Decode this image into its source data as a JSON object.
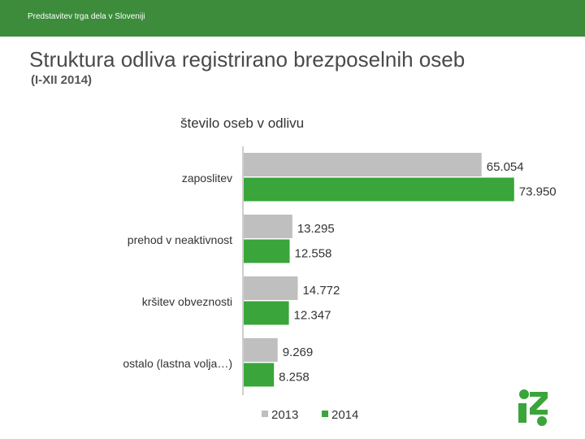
{
  "header": {
    "org": "Predstavitev trga dela v Sloveniji"
  },
  "slide": {
    "title": "Struktura odliva registrirano brezposelnih oseb",
    "subtitle": "(I-XII 2014)"
  },
  "chart_data": {
    "type": "bar",
    "orientation": "horizontal",
    "title": "število oseb v odlivu",
    "categories": [
      "zaposlitev",
      "prehod v neaktivnost",
      "kršitev obveznosti",
      "ostalo (lastna volja…)"
    ],
    "series": [
      {
        "name": "2013",
        "color": "#bfbfbf",
        "values": [
          65054,
          13295,
          14772,
          9269
        ],
        "labels": [
          "65.054",
          "13.295",
          "14.772",
          "9.269"
        ]
      },
      {
        "name": "2014",
        "color": "#3aa53a",
        "values": [
          73950,
          12558,
          12347,
          8258
        ],
        "labels": [
          "73.950",
          "12.558",
          "12.347",
          "8.258"
        ]
      }
    ],
    "xlim": [
      0,
      80000
    ],
    "grid": false,
    "legend_position": "bottom"
  },
  "colors": {
    "header_bar": "#3c8c3c",
    "accent_green": "#3aa53a",
    "neutral_gray": "#bfbfbf"
  },
  "logo": {
    "icon": "green-swirl-logo"
  }
}
